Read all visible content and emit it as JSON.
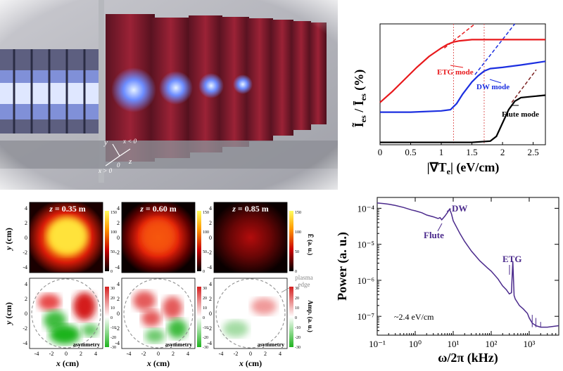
{
  "photo": {
    "coord_labels": [
      "y",
      "x < 0",
      "x > 0",
      "0",
      "z"
    ]
  },
  "top_right": {
    "title_label": "Ĩes / Īes (%)",
    "y_main": "Ĩ",
    "y_sub": "es",
    "y_slash": "/",
    "y_main2": "Ī",
    "y_sub2": "es",
    "y_unit": "(%)",
    "x_label": "|∇Te| (eV/cm)",
    "x_label_pre": "|∇T",
    "x_label_sub": "e",
    "x_label_post": "| (eV/cm)",
    "x_ticks": [
      "0",
      "0.5",
      "1",
      "1.5",
      "2",
      "2.5"
    ],
    "annotations": {
      "etg": "ETG mode",
      "dw": "DW mode",
      "flute": "Flute mode"
    },
    "colors": {
      "etg": "#e8191c",
      "dw": "#1c2fe0",
      "flute": "#000000",
      "threshold": "#e06060"
    }
  },
  "heatmaps": {
    "titles": [
      "z = 0.35 m",
      "z = 0.60 m",
      "z = 0.85 m"
    ],
    "title_prefix": "z",
    "title_values": [
      " = 0.35 m",
      " = 0.60 m",
      " = 0.85 m"
    ],
    "y_label": "y (cm)",
    "x_label": "x (cm)",
    "axis_var_y": "y",
    "axis_var_x": "x",
    "axis_unit": " (cm)",
    "ticks": [
      "-4",
      "-2",
      "0",
      "2",
      "4"
    ],
    "top_colorbar_ticks": [
      "150",
      "100",
      "50",
      "0"
    ],
    "bottom_colorbar_ticks": [
      "30",
      "20",
      "10",
      "0",
      "-10",
      "-20",
      "-30"
    ],
    "top_colorbar_label": "Ē (a. u.)",
    "bottom_colorbar_label": "Amp. (a. u.)",
    "asymmetry_label": "asymmetry",
    "plasma_edge_label": "plasma\nedge",
    "plasma_edge_line1": "plasma",
    "plasma_edge_line2": "edge"
  },
  "chart_data": [
    {
      "type": "line",
      "xlabel": "|∇Te| (eV/cm)",
      "ylabel": "Ĩes / Īes (%)",
      "xlim": [
        0,
        2.7
      ],
      "series": [
        {
          "name": "ETG mode",
          "x": [
            0,
            0.2,
            0.4,
            0.6,
            0.8,
            1.0,
            1.1,
            1.2,
            1.3,
            1.5,
            1.7,
            2.0,
            2.3,
            2.7
          ],
          "y": [
            0.35,
            0.44,
            0.54,
            0.64,
            0.73,
            0.8,
            0.83,
            0.85,
            0.86,
            0.87,
            0.87,
            0.87,
            0.87,
            0.87
          ]
        },
        {
          "name": "DW mode",
          "x": [
            0,
            0.5,
            1.0,
            1.15,
            1.25,
            1.35,
            1.5,
            1.6,
            1.7,
            1.8,
            2.0,
            2.3,
            2.7
          ],
          "y": [
            0.27,
            0.27,
            0.28,
            0.29,
            0.34,
            0.42,
            0.52,
            0.57,
            0.61,
            0.63,
            0.64,
            0.66,
            0.69
          ]
        },
        {
          "name": "Flute mode",
          "x": [
            0,
            0.5,
            1.0,
            1.5,
            1.8,
            1.9,
            2.0,
            2.1,
            2.2,
            2.3,
            2.5,
            2.7
          ],
          "y": [
            0.02,
            0.02,
            0.02,
            0.02,
            0.03,
            0.07,
            0.18,
            0.29,
            0.36,
            0.39,
            0.4,
            0.41
          ]
        }
      ],
      "thresholds_x": [
        1.2,
        1.7
      ]
    },
    {
      "type": "line",
      "xlabel": "ω/2π (kHz)",
      "ylabel": "Power (a. u.)",
      "xscale": "log",
      "yscale": "log",
      "xlim": [
        0.1,
        6000
      ],
      "ylim": [
        3e-08,
        0.0002
      ],
      "x_ticks": [
        "10⁻¹",
        "10⁰",
        "10¹",
        "10²",
        "10³"
      ],
      "y_ticks": [
        "10⁻⁴",
        "10⁻⁵",
        "10⁻⁶",
        "10⁻⁷"
      ],
      "series": [
        {
          "name": "~2.4 eV/cm",
          "x": [
            0.1,
            0.15,
            0.2,
            0.3,
            0.5,
            0.8,
            1,
            1.5,
            2,
            3,
            4,
            4.5,
            5,
            6,
            7,
            8,
            9,
            10,
            15,
            20,
            30,
            50,
            80,
            100,
            150,
            200,
            250,
            300,
            340,
            370,
            400,
            430,
            470,
            550,
            700,
            900,
            1000,
            1200,
            1500,
            2000,
            3000,
            4000,
            6000
          ],
          "y": [
            0.00014,
            0.000135,
            0.00013,
            0.00012,
            0.000105,
            9e-05,
            8.5e-05,
            7.5e-05,
            6.5e-05,
            5.8e-05,
            5.2e-05,
            5.5e-05,
            4.8e-05,
            6e-05,
            7.5e-05,
            9.5e-05,
            7e-05,
            4.5e-05,
            2e-05,
            1.2e-05,
            6.5e-06,
            3.5e-06,
            2.2e-06,
            1.8e-06,
            1.1e-06,
            7e-07,
            5.5e-07,
            4.2e-07,
            4.5e-07,
            3.4e-06,
            3.8e-07,
            3e-07,
            2.6e-07,
            2e-07,
            1.6e-07,
            1.2e-07,
            9e-08,
            6.5e-08,
            5.5e-08,
            5e-08,
            5e-08,
            5.2e-08,
            5.5e-08
          ]
        }
      ],
      "annotations": {
        "flute": "Flute",
        "dw": "DW",
        "etg": "ETG",
        "gradient": "~2.4 eV/cm"
      },
      "line_color": "#4b2a8c"
    }
  ]
}
